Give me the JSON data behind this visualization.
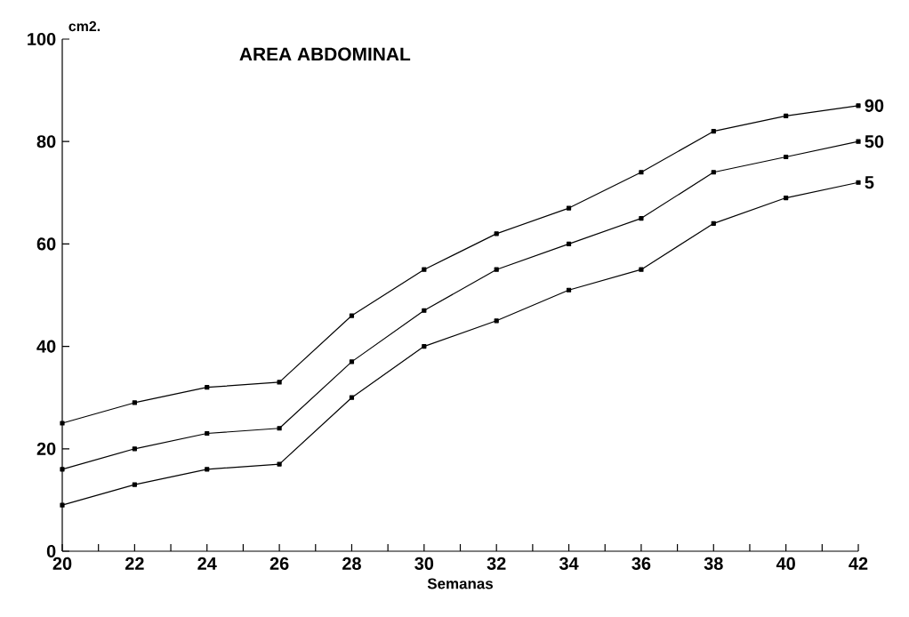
{
  "chart_data": {
    "type": "line",
    "title": "AREA ABDOMINAL",
    "xlabel": "Semanas",
    "ylabel": "cm2.",
    "x": [
      20,
      22,
      24,
      26,
      28,
      30,
      32,
      34,
      36,
      38,
      40,
      42
    ],
    "series": [
      {
        "name": "90",
        "color": "#000000",
        "values": [
          25,
          29,
          32,
          33,
          46,
          55,
          62,
          67,
          74,
          82,
          85,
          87
        ]
      },
      {
        "name": "50",
        "color": "#000000",
        "values": [
          16,
          20,
          23,
          24,
          37,
          47,
          55,
          60,
          65,
          74,
          77,
          80
        ]
      },
      {
        "name": "5",
        "color": "#000000",
        "values": [
          9,
          13,
          16,
          17,
          30,
          40,
          45,
          51,
          55,
          64,
          69,
          72
        ]
      }
    ],
    "xlim": [
      20,
      42
    ],
    "ylim": [
      0,
      100
    ],
    "xticks": [
      20,
      22,
      24,
      26,
      28,
      30,
      32,
      34,
      36,
      38,
      40,
      42
    ],
    "yticks": [
      0,
      20,
      40,
      60,
      80,
      100
    ],
    "grid": false,
    "legend": false,
    "marker": "square",
    "line_style": "solid"
  }
}
